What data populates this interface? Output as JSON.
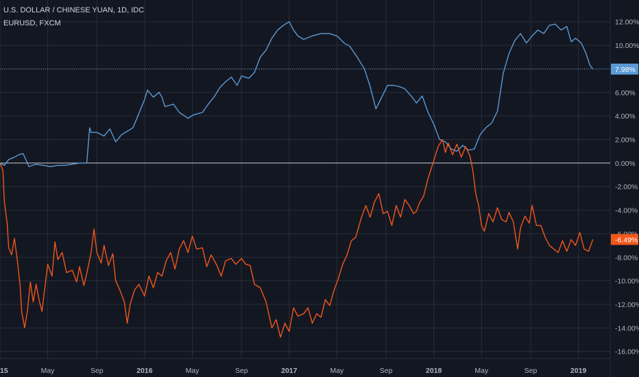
{
  "header": {
    "title": "U.S. DOLLAR / CHINESE YUAN, 1D, IDC",
    "compare_label": "EURUSD, FXCM"
  },
  "colors": {
    "background": "#131722",
    "grid": "#2a2e39",
    "axis_text": "#b2b5be",
    "usdcny": "#5b9bd5",
    "eurusd": "#f2571b",
    "zero_line": "#c9cdd6"
  },
  "chart_data": {
    "type": "line",
    "title": "U.S. DOLLAR / CHINESE YUAN, 1D, IDC",
    "y_unit": "%",
    "ylim": [
      -16.6,
      12.8
    ],
    "xlim": [
      2015.0,
      2019.22
    ],
    "grid": true,
    "x_ticks": [
      {
        "x": 2015.0,
        "label": "2015",
        "bold": true
      },
      {
        "x": 2015.33,
        "label": "May",
        "bold": false
      },
      {
        "x": 2015.67,
        "label": "Sep",
        "bold": false
      },
      {
        "x": 2016.0,
        "label": "2016",
        "bold": true
      },
      {
        "x": 2016.33,
        "label": "May",
        "bold": false
      },
      {
        "x": 2016.67,
        "label": "Sep",
        "bold": false
      },
      {
        "x": 2017.0,
        "label": "2017",
        "bold": true
      },
      {
        "x": 2017.33,
        "label": "May",
        "bold": false
      },
      {
        "x": 2017.67,
        "label": "Sep",
        "bold": false
      },
      {
        "x": 2018.0,
        "label": "2018",
        "bold": true
      },
      {
        "x": 2018.33,
        "label": "May",
        "bold": false
      },
      {
        "x": 2018.67,
        "label": "Sep",
        "bold": false
      },
      {
        "x": 2019.0,
        "label": "2019",
        "bold": true
      }
    ],
    "y_ticks": [
      {
        "y": 12,
        "label": "12.00%"
      },
      {
        "y": 10,
        "label": "10.00%"
      },
      {
        "y": 8,
        "label": "8.00%"
      },
      {
        "y": 6,
        "label": "6.00%"
      },
      {
        "y": 4,
        "label": "4.00%"
      },
      {
        "y": 2,
        "label": "2.00%"
      },
      {
        "y": 0,
        "label": "0.00%"
      },
      {
        "y": -2,
        "label": "-2.00%"
      },
      {
        "y": -4,
        "label": "-4.00%"
      },
      {
        "y": -6,
        "label": "-6.00%"
      },
      {
        "y": -8,
        "label": "-8.00%"
      },
      {
        "y": -10,
        "label": "-10.00%"
      },
      {
        "y": -12,
        "label": "-12.00%"
      },
      {
        "y": -14,
        "label": "-14.00%"
      },
      {
        "y": -16,
        "label": "-16.00%"
      }
    ],
    "series": [
      {
        "name": "USDCNY",
        "color": "#5b9bd5",
        "last_label": "7.98%",
        "last_value": 7.98,
        "points": [
          [
            2015.0,
            0.0
          ],
          [
            2015.03,
            -0.2
          ],
          [
            2015.06,
            0.3
          ],
          [
            2015.1,
            0.5
          ],
          [
            2015.13,
            0.7
          ],
          [
            2015.16,
            0.8
          ],
          [
            2015.2,
            -0.3
          ],
          [
            2015.25,
            -0.1
          ],
          [
            2015.3,
            -0.2
          ],
          [
            2015.35,
            -0.3
          ],
          [
            2015.4,
            -0.2
          ],
          [
            2015.45,
            -0.2
          ],
          [
            2015.5,
            -0.1
          ],
          [
            2015.55,
            0.0
          ],
          [
            2015.6,
            0.0
          ],
          [
            2015.62,
            3.0
          ],
          [
            2015.63,
            2.6
          ],
          [
            2015.67,
            2.6
          ],
          [
            2015.72,
            2.3
          ],
          [
            2015.76,
            2.9
          ],
          [
            2015.8,
            1.8
          ],
          [
            2015.84,
            2.4
          ],
          [
            2015.88,
            2.7
          ],
          [
            2015.92,
            3.0
          ],
          [
            2015.96,
            4.2
          ],
          [
            2016.0,
            5.4
          ],
          [
            2016.02,
            6.2
          ],
          [
            2016.06,
            5.6
          ],
          [
            2016.1,
            6.0
          ],
          [
            2016.12,
            5.6
          ],
          [
            2016.14,
            4.8
          ],
          [
            2016.2,
            5.0
          ],
          [
            2016.24,
            4.3
          ],
          [
            2016.3,
            3.8
          ],
          [
            2016.34,
            4.1
          ],
          [
            2016.4,
            4.3
          ],
          [
            2016.44,
            5.0
          ],
          [
            2016.48,
            5.6
          ],
          [
            2016.52,
            6.4
          ],
          [
            2016.56,
            6.9
          ],
          [
            2016.6,
            7.3
          ],
          [
            2016.64,
            6.6
          ],
          [
            2016.67,
            7.4
          ],
          [
            2016.72,
            7.2
          ],
          [
            2016.76,
            7.7
          ],
          [
            2016.8,
            9.0
          ],
          [
            2016.84,
            9.6
          ],
          [
            2016.88,
            10.6
          ],
          [
            2016.92,
            11.3
          ],
          [
            2016.96,
            11.7
          ],
          [
            2017.0,
            12.0
          ],
          [
            2017.03,
            11.3
          ],
          [
            2017.06,
            10.8
          ],
          [
            2017.1,
            10.5
          ],
          [
            2017.16,
            10.8
          ],
          [
            2017.22,
            11.0
          ],
          [
            2017.28,
            11.0
          ],
          [
            2017.33,
            10.8
          ],
          [
            2017.38,
            10.2
          ],
          [
            2017.42,
            9.9
          ],
          [
            2017.47,
            9.0
          ],
          [
            2017.52,
            8.0
          ],
          [
            2017.56,
            6.5
          ],
          [
            2017.6,
            4.6
          ],
          [
            2017.64,
            5.6
          ],
          [
            2017.68,
            6.6
          ],
          [
            2017.72,
            6.6
          ],
          [
            2017.76,
            6.5
          ],
          [
            2017.8,
            6.3
          ],
          [
            2017.85,
            5.6
          ],
          [
            2017.88,
            5.1
          ],
          [
            2017.92,
            5.7
          ],
          [
            2017.96,
            4.3
          ],
          [
            2018.0,
            3.3
          ],
          [
            2018.04,
            2.0
          ],
          [
            2018.08,
            1.8
          ],
          [
            2018.12,
            1.2
          ],
          [
            2018.16,
            1.0
          ],
          [
            2018.2,
            1.5
          ],
          [
            2018.24,
            1.1
          ],
          [
            2018.28,
            1.2
          ],
          [
            2018.32,
            2.4
          ],
          [
            2018.36,
            3.0
          ],
          [
            2018.4,
            3.4
          ],
          [
            2018.44,
            4.4
          ],
          [
            2018.48,
            7.6
          ],
          [
            2018.52,
            9.3
          ],
          [
            2018.56,
            10.4
          ],
          [
            2018.6,
            11.0
          ],
          [
            2018.64,
            10.2
          ],
          [
            2018.68,
            10.8
          ],
          [
            2018.72,
            11.3
          ],
          [
            2018.76,
            11.0
          ],
          [
            2018.8,
            11.7
          ],
          [
            2018.84,
            11.8
          ],
          [
            2018.88,
            11.3
          ],
          [
            2018.92,
            11.6
          ],
          [
            2018.95,
            10.3
          ],
          [
            2018.98,
            10.6
          ],
          [
            2019.02,
            10.2
          ],
          [
            2019.05,
            9.4
          ],
          [
            2019.08,
            8.3
          ],
          [
            2019.1,
            7.98
          ]
        ]
      },
      {
        "name": "EURUSD",
        "color": "#f2571b",
        "last_label": "-6.49%",
        "last_value": -6.49,
        "points": [
          [
            2015.0,
            0.0
          ],
          [
            2015.02,
            -0.6
          ],
          [
            2015.03,
            -3.2
          ],
          [
            2015.05,
            -5.2
          ],
          [
            2015.06,
            -7.2
          ],
          [
            2015.08,
            -7.8
          ],
          [
            2015.1,
            -6.4
          ],
          [
            2015.12,
            -8.3
          ],
          [
            2015.14,
            -10.5
          ],
          [
            2015.15,
            -12.6
          ],
          [
            2015.17,
            -14.0
          ],
          [
            2015.19,
            -12.5
          ],
          [
            2015.21,
            -10.1
          ],
          [
            2015.23,
            -11.8
          ],
          [
            2015.25,
            -10.3
          ],
          [
            2015.27,
            -11.6
          ],
          [
            2015.29,
            -12.6
          ],
          [
            2015.31,
            -10.6
          ],
          [
            2015.33,
            -8.6
          ],
          [
            2015.36,
            -9.6
          ],
          [
            2015.38,
            -6.7
          ],
          [
            2015.4,
            -8.2
          ],
          [
            2015.43,
            -7.6
          ],
          [
            2015.46,
            -9.3
          ],
          [
            2015.5,
            -9.1
          ],
          [
            2015.53,
            -10.1
          ],
          [
            2015.55,
            -8.8
          ],
          [
            2015.58,
            -10.4
          ],
          [
            2015.6,
            -9.4
          ],
          [
            2015.63,
            -7.6
          ],
          [
            2015.65,
            -5.6
          ],
          [
            2015.67,
            -7.6
          ],
          [
            2015.7,
            -8.5
          ],
          [
            2015.72,
            -7.0
          ],
          [
            2015.75,
            -8.7
          ],
          [
            2015.78,
            -7.7
          ],
          [
            2015.8,
            -10.0
          ],
          [
            2015.83,
            -10.8
          ],
          [
            2015.86,
            -11.8
          ],
          [
            2015.88,
            -13.6
          ],
          [
            2015.9,
            -12.0
          ],
          [
            2015.93,
            -10.8
          ],
          [
            2015.96,
            -10.3
          ],
          [
            2016.0,
            -11.3
          ],
          [
            2016.03,
            -9.6
          ],
          [
            2016.06,
            -10.6
          ],
          [
            2016.09,
            -9.3
          ],
          [
            2016.12,
            -9.6
          ],
          [
            2016.15,
            -8.3
          ],
          [
            2016.18,
            -7.6
          ],
          [
            2016.21,
            -9.0
          ],
          [
            2016.24,
            -7.3
          ],
          [
            2016.27,
            -6.6
          ],
          [
            2016.3,
            -7.6
          ],
          [
            2016.33,
            -6.2
          ],
          [
            2016.36,
            -7.3
          ],
          [
            2016.4,
            -7.2
          ],
          [
            2016.43,
            -8.8
          ],
          [
            2016.46,
            -7.8
          ],
          [
            2016.5,
            -8.7
          ],
          [
            2016.53,
            -9.6
          ],
          [
            2016.56,
            -8.3
          ],
          [
            2016.6,
            -8.1
          ],
          [
            2016.63,
            -8.6
          ],
          [
            2016.67,
            -8.1
          ],
          [
            2016.7,
            -8.6
          ],
          [
            2016.73,
            -8.7
          ],
          [
            2016.76,
            -10.3
          ],
          [
            2016.8,
            -10.6
          ],
          [
            2016.84,
            -11.8
          ],
          [
            2016.88,
            -14.0
          ],
          [
            2016.91,
            -13.3
          ],
          [
            2016.94,
            -14.8
          ],
          [
            2016.97,
            -13.6
          ],
          [
            2017.0,
            -14.3
          ],
          [
            2017.03,
            -12.3
          ],
          [
            2017.06,
            -13.0
          ],
          [
            2017.1,
            -12.8
          ],
          [
            2017.13,
            -12.3
          ],
          [
            2017.16,
            -13.6
          ],
          [
            2017.19,
            -12.8
          ],
          [
            2017.22,
            -13.1
          ],
          [
            2017.25,
            -11.6
          ],
          [
            2017.28,
            -12.1
          ],
          [
            2017.31,
            -10.8
          ],
          [
            2017.34,
            -9.8
          ],
          [
            2017.37,
            -8.6
          ],
          [
            2017.4,
            -7.8
          ],
          [
            2017.43,
            -6.6
          ],
          [
            2017.46,
            -6.3
          ],
          [
            2017.5,
            -4.6
          ],
          [
            2017.53,
            -3.6
          ],
          [
            2017.56,
            -4.6
          ],
          [
            2017.59,
            -3.3
          ],
          [
            2017.62,
            -2.6
          ],
          [
            2017.65,
            -4.3
          ],
          [
            2017.68,
            -4.1
          ],
          [
            2017.71,
            -5.3
          ],
          [
            2017.74,
            -3.6
          ],
          [
            2017.77,
            -4.6
          ],
          [
            2017.8,
            -3.1
          ],
          [
            2017.83,
            -3.6
          ],
          [
            2017.86,
            -4.3
          ],
          [
            2017.88,
            -4.1
          ],
          [
            2017.9,
            -3.4
          ],
          [
            2017.93,
            -2.8
          ],
          [
            2017.96,
            -1.3
          ],
          [
            2018.0,
            0.2
          ],
          [
            2018.03,
            1.4
          ],
          [
            2018.06,
            2.0
          ],
          [
            2018.08,
            0.9
          ],
          [
            2018.1,
            1.7
          ],
          [
            2018.13,
            0.7
          ],
          [
            2018.16,
            1.6
          ],
          [
            2018.19,
            0.5
          ],
          [
            2018.22,
            1.4
          ],
          [
            2018.25,
            0.6
          ],
          [
            2018.27,
            -0.6
          ],
          [
            2018.29,
            -2.6
          ],
          [
            2018.31,
            -3.6
          ],
          [
            2018.33,
            -5.3
          ],
          [
            2018.35,
            -5.8
          ],
          [
            2018.38,
            -4.3
          ],
          [
            2018.41,
            -5.0
          ],
          [
            2018.44,
            -3.8
          ],
          [
            2018.47,
            -4.8
          ],
          [
            2018.5,
            -5.0
          ],
          [
            2018.52,
            -4.2
          ],
          [
            2018.55,
            -5.0
          ],
          [
            2018.58,
            -7.3
          ],
          [
            2018.6,
            -5.5
          ],
          [
            2018.63,
            -4.5
          ],
          [
            2018.66,
            -5.1
          ],
          [
            2018.68,
            -3.6
          ],
          [
            2018.71,
            -5.3
          ],
          [
            2018.74,
            -5.3
          ],
          [
            2018.77,
            -6.3
          ],
          [
            2018.8,
            -7.0
          ],
          [
            2018.83,
            -7.3
          ],
          [
            2018.86,
            -7.6
          ],
          [
            2018.89,
            -6.6
          ],
          [
            2018.92,
            -7.5
          ],
          [
            2018.95,
            -6.5
          ],
          [
            2018.98,
            -7.0
          ],
          [
            2019.01,
            -5.9
          ],
          [
            2019.04,
            -7.3
          ],
          [
            2019.07,
            -7.5
          ],
          [
            2019.1,
            -6.49
          ]
        ]
      }
    ]
  }
}
